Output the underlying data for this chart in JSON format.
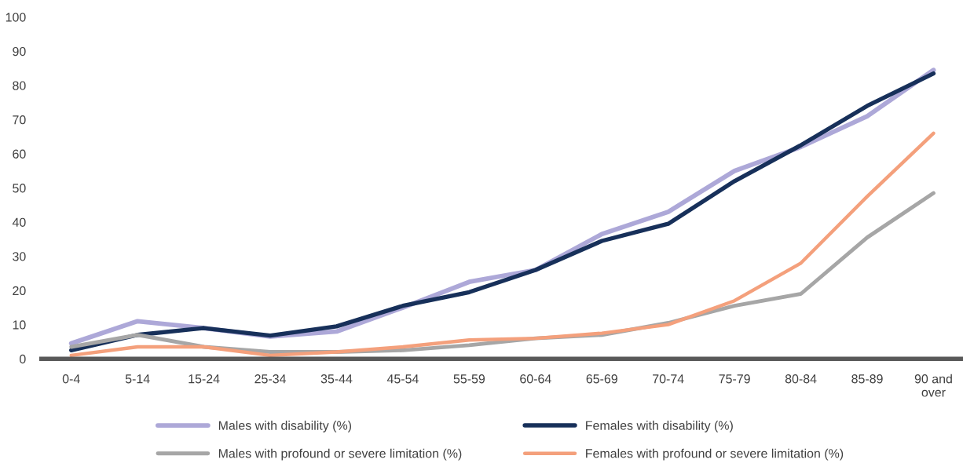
{
  "chart_data": {
    "type": "line",
    "categories": [
      "0-4",
      "5-14",
      "15-24",
      "25-34",
      "35-44",
      "45-54",
      "55-59",
      "60-64",
      "65-69",
      "70-74",
      "75-79",
      "80-84",
      "85-89",
      "90 and\nover"
    ],
    "series": [
      {
        "name": "Males with disability (%)",
        "color": "#ada8d8",
        "values": [
          4.5,
          11,
          9,
          6.5,
          8,
          15,
          22.5,
          26,
          36.5,
          43,
          55,
          62,
          71,
          84.5
        ]
      },
      {
        "name": "Females with disability (%)",
        "color": "#17305a",
        "values": [
          2.5,
          7,
          9,
          6.8,
          9.5,
          15.5,
          19.5,
          26,
          34.5,
          39.5,
          52,
          62.5,
          74,
          83.5
        ]
      },
      {
        "name": "Males with profound or severe limitation (%)",
        "color": "#a6a6a6",
        "values": [
          3.5,
          7,
          3.5,
          2,
          2,
          2.5,
          4,
          6,
          7,
          10.5,
          15.5,
          19,
          35.5,
          48.5
        ]
      },
      {
        "name": "Females with profound or severe limitation (%)",
        "color": "#f4a07c",
        "values": [
          1,
          3.5,
          3.5,
          1,
          2,
          3.5,
          5.5,
          6,
          7.5,
          10,
          17,
          28,
          47.5,
          66
        ]
      }
    ],
    "ylim": [
      0,
      100
    ],
    "yticks": [
      0,
      10,
      20,
      30,
      40,
      50,
      60,
      70,
      80,
      90,
      100
    ],
    "grid": false,
    "legend": "bottom",
    "marker": "none",
    "line_style": "solid"
  }
}
